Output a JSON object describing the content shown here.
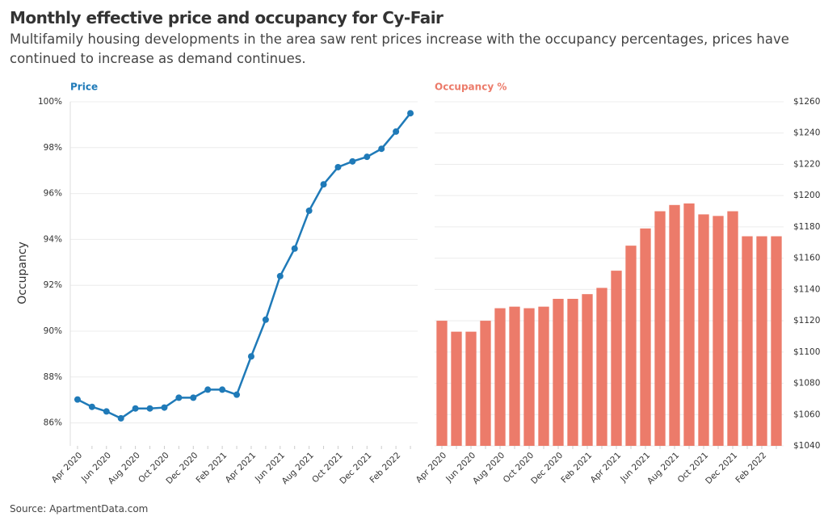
{
  "title": "Monthly effective price and occupancy for Cy-Fair",
  "subtitle": "Multifamily housing developments in the area saw rent prices increase with the occupancy percentages, prices have continued to increase as demand continues.",
  "source": "Source: ApartmentData.com",
  "chart_data": [
    {
      "type": "line",
      "title": "Price",
      "ylabel": "Occupancy",
      "color": "#1f7ab8",
      "grid": true,
      "yaxis_side": "left",
      "categories": [
        "Apr 2020",
        null,
        "Jun 2020",
        null,
        "Aug 2020",
        null,
        "Oct 2020",
        null,
        "Dec 2020",
        null,
        "Feb 2021",
        null,
        "Apr 2021",
        null,
        "Jun 2021",
        null,
        "Aug 2021",
        null,
        "Oct 2021",
        null,
        "Dec 2021",
        null,
        "Feb 2022",
        null
      ],
      "values": [
        87.02,
        86.7,
        86.5,
        86.2,
        86.63,
        86.63,
        86.67,
        87.1,
        87.1,
        87.45,
        87.45,
        87.23,
        88.9,
        90.5,
        92.4,
        93.6,
        95.25,
        96.4,
        97.15,
        97.4,
        97.6,
        97.95,
        98.7,
        99.5
      ],
      "ylim": [
        85,
        100
      ],
      "yticks": [
        {
          "value": 86,
          "label": "86%"
        },
        {
          "value": 88,
          "label": "88%"
        },
        {
          "value": 90,
          "label": "90%"
        },
        {
          "value": 92,
          "label": "92%"
        },
        {
          "value": 94,
          "label": "94%"
        },
        {
          "value": 96,
          "label": "96%"
        },
        {
          "value": 98,
          "label": "98%"
        },
        {
          "value": 100,
          "label": "100%"
        }
      ]
    },
    {
      "type": "bar",
      "title": "Occupancy %",
      "color": "#ec7b6a",
      "grid": true,
      "yaxis_side": "right",
      "categories": [
        "Apr 2020",
        null,
        "Jun 2020",
        null,
        "Aug 2020",
        null,
        "Oct 2020",
        null,
        "Dec 2020",
        null,
        "Feb 2021",
        null,
        "Apr 2021",
        null,
        "Jun 2021",
        null,
        "Aug 2021",
        null,
        "Oct 2021",
        null,
        "Dec 2021",
        null,
        "Feb 2022",
        null
      ],
      "values": [
        1120,
        1113,
        1113,
        1120,
        1128,
        1129,
        1128,
        1129,
        1134,
        1134,
        1137,
        1141,
        1152,
        1168,
        1179,
        1190,
        1194,
        1195,
        1188,
        1187,
        1190,
        1174,
        1174,
        1174
      ],
      "ylim": [
        1040,
        1260
      ],
      "yticks": [
        {
          "value": 1040,
          "label": "$1040"
        },
        {
          "value": 1060,
          "label": "$1060"
        },
        {
          "value": 1080,
          "label": "$1080"
        },
        {
          "value": 1100,
          "label": "$1100"
        },
        {
          "value": 1120,
          "label": "$1120"
        },
        {
          "value": 1140,
          "label": "$1140"
        },
        {
          "value": 1160,
          "label": "$1160"
        },
        {
          "value": 1180,
          "label": "$1180"
        },
        {
          "value": 1200,
          "label": "$1200"
        },
        {
          "value": 1220,
          "label": "$1220"
        },
        {
          "value": 1240,
          "label": "$1240"
        },
        {
          "value": 1260,
          "label": "$1260"
        }
      ]
    }
  ]
}
